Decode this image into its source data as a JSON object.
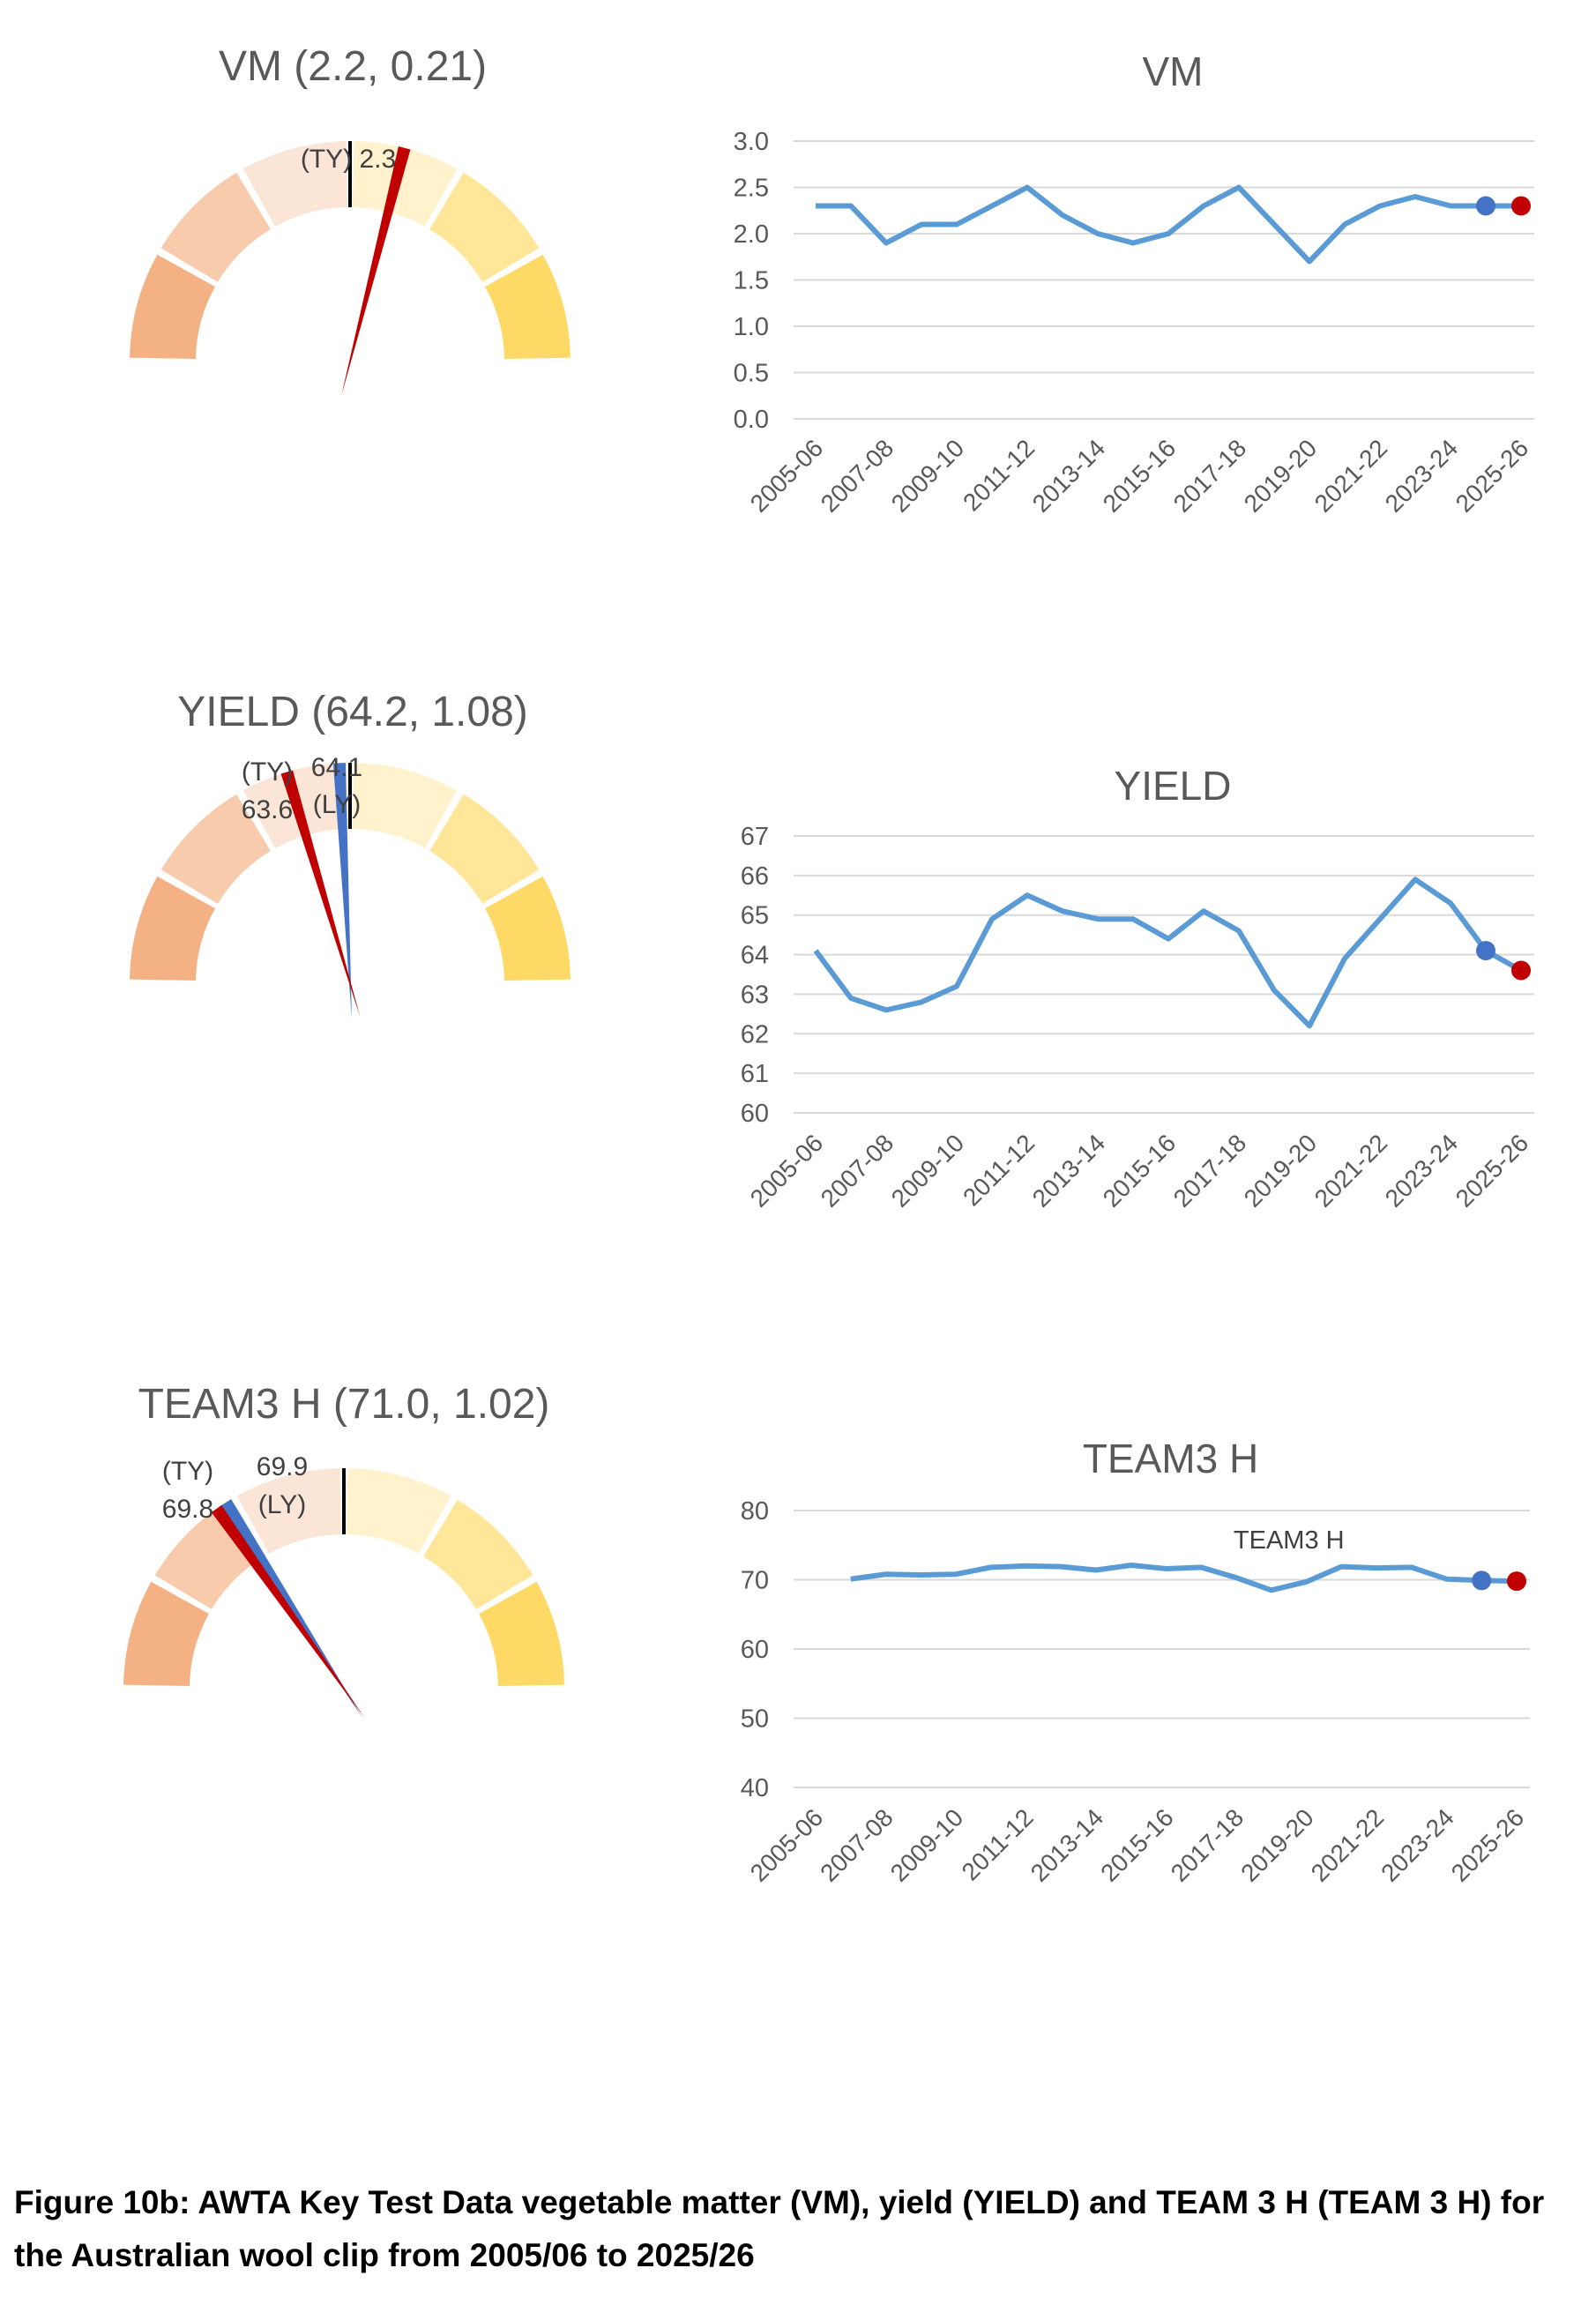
{
  "caption": "Figure 10b: AWTA Key Test Data vegetable matter (VM), yield (YIELD) and TEAM 3 H (TEAM 3 H) for the Australian wool clip from 2005/06 to 2025/26",
  "colors": {
    "line": "#5B9BD5",
    "last_year_marker": "#4472C4",
    "this_year_marker": "#C00000",
    "band_colors": [
      "#F4B183",
      "#F8CBAD",
      "#FBE5D6",
      "#FFF2CC",
      "#FFE699",
      "#FFD966"
    ]
  },
  "gauges": [
    {
      "title": "VM (2.2, 0.21)",
      "ty_label_1": "(TY) 2.3",
      "ty_label_2": "",
      "ly_label_1": "",
      "ly_label_2": "",
      "mean": 2.2,
      "sd": 0.21,
      "this_year": 2.3,
      "last_year": 2.3
    },
    {
      "title": "YIELD (64.2, 1.08)",
      "ty_label_1": "(TY)",
      "ty_label_2": "63.6",
      "ly_label_1": "64.1",
      "ly_label_2": "(LY)",
      "mean": 64.2,
      "sd": 1.08,
      "this_year": 63.6,
      "last_year": 64.1
    },
    {
      "title": "TEAM3 H (71.0, 1.02)",
      "ty_label_1": "(TY)",
      "ty_label_2": "69.8",
      "ly_label_1": "69.9",
      "ly_label_2": "(LY)",
      "mean": 71.0,
      "sd": 1.02,
      "this_year": 69.8,
      "last_year": 69.9
    }
  ],
  "chart_data": [
    {
      "type": "line",
      "title": "VM",
      "categories": [
        "2005-06",
        "2006-07",
        "2007-08",
        "2008-09",
        "2009-10",
        "2010-11",
        "2011-12",
        "2012-13",
        "2013-14",
        "2014-15",
        "2015-16",
        "2016-17",
        "2017-18",
        "2018-19",
        "2019-20",
        "2020-21",
        "2021-22",
        "2022-23",
        "2023-24",
        "2024-25",
        "2025-26"
      ],
      "tick_labels": [
        "2005-06",
        "2007-08",
        "2009-10",
        "2011-12",
        "2013-14",
        "2015-16",
        "2017-18",
        "2019-20",
        "2021-22",
        "2023-24",
        "2025-26"
      ],
      "series": [
        {
          "values": [
            2.3,
            2.3,
            1.9,
            2.1,
            2.1,
            2.3,
            2.5,
            2.2,
            2.0,
            1.9,
            2.0,
            2.3,
            2.5,
            2.1,
            1.7,
            2.1,
            2.3,
            2.4,
            2.3,
            2.3,
            2.3
          ]
        }
      ],
      "last_year": {
        "category": "2024-25",
        "value": 2.3
      },
      "this_year": {
        "category": "2025-26",
        "value": 2.3
      },
      "ylim": [
        0,
        3.0
      ],
      "yticks": [
        "0.0",
        "0.5",
        "1.0",
        "1.5",
        "2.0",
        "2.5",
        "3.0"
      ],
      "annotation": "",
      "grid": true
    },
    {
      "type": "line",
      "title": "YIELD",
      "categories": [
        "2005-06",
        "2006-07",
        "2007-08",
        "2008-09",
        "2009-10",
        "2010-11",
        "2011-12",
        "2012-13",
        "2013-14",
        "2014-15",
        "2015-16",
        "2016-17",
        "2017-18",
        "2018-19",
        "2019-20",
        "2020-21",
        "2021-22",
        "2022-23",
        "2023-24",
        "2024-25",
        "2025-26"
      ],
      "tick_labels": [
        "2005-06",
        "2007-08",
        "2009-10",
        "2011-12",
        "2013-14",
        "2015-16",
        "2017-18",
        "2019-20",
        "2021-22",
        "2023-24",
        "2025-26"
      ],
      "series": [
        {
          "values": [
            64.1,
            62.9,
            62.6,
            62.8,
            63.2,
            64.9,
            65.5,
            65.1,
            64.9,
            64.9,
            64.4,
            65.1,
            64.6,
            63.1,
            62.2,
            63.9,
            64.9,
            65.9,
            65.3,
            64.1,
            63.6
          ]
        }
      ],
      "last_year": {
        "category": "2024-25",
        "value": 64.1
      },
      "this_year": {
        "category": "2025-26",
        "value": 63.6
      },
      "ylim": [
        60,
        67
      ],
      "yticks": [
        "60",
        "61",
        "62",
        "63",
        "64",
        "65",
        "66",
        "67"
      ],
      "annotation": "",
      "grid": true
    },
    {
      "type": "line",
      "title": "TEAM3 H",
      "categories": [
        "2005-06",
        "2006-07",
        "2007-08",
        "2008-09",
        "2009-10",
        "2010-11",
        "2011-12",
        "2012-13",
        "2013-14",
        "2014-15",
        "2015-16",
        "2016-17",
        "2017-18",
        "2018-19",
        "2019-20",
        "2020-21",
        "2021-22",
        "2022-23",
        "2023-24",
        "2024-25",
        "2025-26"
      ],
      "tick_labels": [
        "2005-06",
        "2007-08",
        "2009-10",
        "2011-12",
        "2013-14",
        "2015-16",
        "2017-18",
        "2019-20",
        "2021-22",
        "2023-24",
        "2025-26"
      ],
      "series": [
        {
          "values": [
            null,
            70.1,
            70.8,
            70.7,
            70.8,
            71.8,
            72.0,
            71.9,
            71.4,
            72.1,
            71.6,
            71.8,
            70.3,
            68.5,
            69.7,
            71.9,
            71.7,
            71.8,
            70.1,
            69.9,
            69.8
          ]
        }
      ],
      "last_year": {
        "category": "2024-25",
        "value": 69.9
      },
      "this_year": {
        "category": "2025-26",
        "value": 69.8
      },
      "ylim": [
        40,
        80
      ],
      "yticks": [
        "40",
        "50",
        "60",
        "70",
        "80"
      ],
      "annotation": "TEAM3 H",
      "grid": true
    }
  ]
}
